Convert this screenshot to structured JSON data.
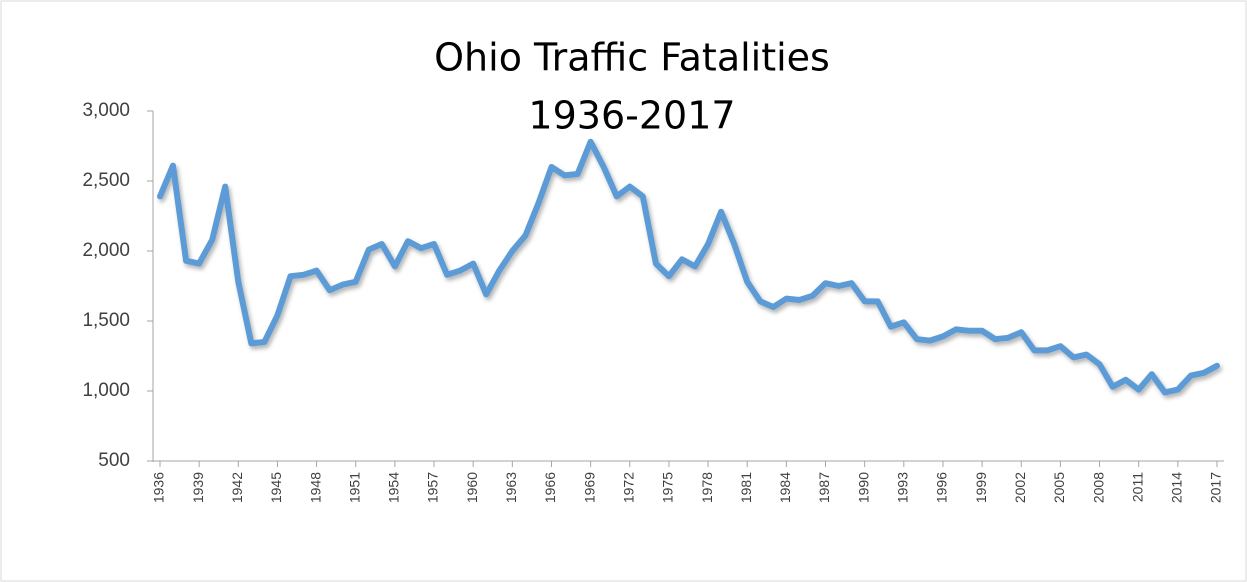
{
  "chart_data": {
    "type": "line",
    "title": "Ohio Traffic Fatalities",
    "subtitle": "1936-2017",
    "x": [
      1936,
      1937,
      1938,
      1939,
      1940,
      1941,
      1942,
      1943,
      1944,
      1945,
      1946,
      1947,
      1948,
      1949,
      1950,
      1951,
      1952,
      1953,
      1954,
      1955,
      1956,
      1957,
      1958,
      1959,
      1960,
      1961,
      1962,
      1963,
      1964,
      1965,
      1966,
      1967,
      1968,
      1969,
      1970,
      1971,
      1972,
      1973,
      1974,
      1975,
      1976,
      1977,
      1978,
      1979,
      1980,
      1981,
      1982,
      1983,
      1984,
      1985,
      1986,
      1987,
      1988,
      1989,
      1990,
      1991,
      1992,
      1993,
      1994,
      1995,
      1996,
      1997,
      1998,
      1999,
      2000,
      2001,
      2002,
      2003,
      2004,
      2005,
      2006,
      2007,
      2008,
      2009,
      2010,
      2011,
      2012,
      2013,
      2014,
      2015,
      2016,
      2017
    ],
    "series": [
      {
        "name": "Fatalities",
        "color": "#5b9bd5",
        "values": [
          2390,
          2610,
          1930,
          1910,
          2080,
          2460,
          1780,
          1340,
          1350,
          1540,
          1820,
          1830,
          1860,
          1720,
          1760,
          1780,
          2010,
          2050,
          1890,
          2070,
          2020,
          2050,
          1830,
          1860,
          1910,
          1690,
          1860,
          2000,
          2110,
          2340,
          2600,
          2540,
          2550,
          2780,
          2600,
          2390,
          2460,
          2390,
          1910,
          1820,
          1940,
          1890,
          2050,
          2280,
          2050,
          1780,
          1640,
          1600,
          1660,
          1650,
          1680,
          1770,
          1750,
          1770,
          1640,
          1640,
          1460,
          1490,
          1370,
          1360,
          1390,
          1440,
          1430,
          1430,
          1370,
          1380,
          1420,
          1290,
          1290,
          1320,
          1240,
          1260,
          1190,
          1030,
          1080,
          1010,
          1120,
          990,
          1010,
          1110,
          1130,
          1180
        ]
      }
    ],
    "xlim": [
      1936,
      2017
    ],
    "xticks": [
      1936,
      1939,
      1942,
      1945,
      1948,
      1951,
      1954,
      1957,
      1960,
      1963,
      1966,
      1969,
      1972,
      1975,
      1978,
      1981,
      1984,
      1987,
      1990,
      1993,
      1996,
      1999,
      2002,
      2005,
      2008,
      2011,
      2014,
      2017
    ],
    "ylim": [
      500,
      3000
    ],
    "yticks": [
      500,
      {
        "value": 1000,
        "label": "1,000"
      },
      {
        "value": 1500,
        "label": "1,500"
      },
      {
        "value": 2000,
        "label": "2,000"
      },
      {
        "value": 2500,
        "label": "2,500"
      },
      {
        "value": 3000,
        "label": "3,000"
      }
    ]
  }
}
